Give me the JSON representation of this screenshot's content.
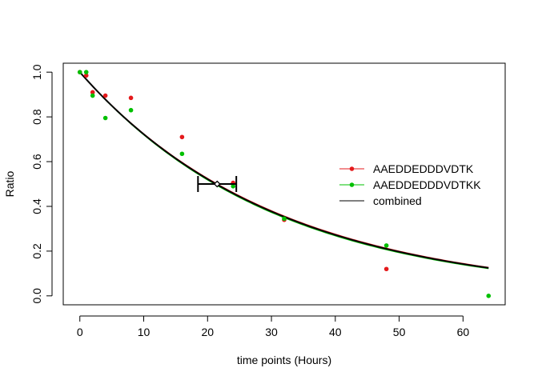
{
  "chart_data": {
    "type": "scatter",
    "title": "",
    "xlabel": "time points (Hours)",
    "ylabel": "Ratio",
    "xlim": [
      -2.6,
      66.6
    ],
    "ylim": [
      -0.04,
      1.04
    ],
    "xticks": [
      0,
      10,
      20,
      30,
      40,
      50,
      60
    ],
    "yticks": [
      0.0,
      0.2,
      0.4,
      0.6,
      0.8,
      1.0
    ],
    "xtick_labels": [
      "0",
      "10",
      "20",
      "30",
      "40",
      "50",
      "60"
    ],
    "ytick_labels": [
      "0.0",
      "0.2",
      "0.4",
      "0.6",
      "0.8",
      "1.0"
    ],
    "grid": false,
    "legend_position": "right",
    "series": [
      {
        "name": "AAEDDEDDDVDTK",
        "color": "#e41a1c",
        "points": [
          {
            "x": 0,
            "y": 1.0
          },
          {
            "x": 1,
            "y": 0.985
          },
          {
            "x": 2,
            "y": 0.91
          },
          {
            "x": 4,
            "y": 0.895
          },
          {
            "x": 8,
            "y": 0.885
          },
          {
            "x": 16,
            "y": 0.71
          },
          {
            "x": 24,
            "y": 0.505
          },
          {
            "x": 32,
            "y": 0.34
          },
          {
            "x": 48,
            "y": 0.12
          }
        ],
        "fit": {
          "model": "exponential_decay",
          "start": 0,
          "end": 64,
          "rate": 0.0322
        }
      },
      {
        "name": "AAEDDEDDDVDTKK",
        "color": "#00c000",
        "points": [
          {
            "x": 0,
            "y": 1.0
          },
          {
            "x": 1,
            "y": 1.0
          },
          {
            "x": 2,
            "y": 0.895
          },
          {
            "x": 4,
            "y": 0.795
          },
          {
            "x": 8,
            "y": 0.83
          },
          {
            "x": 16,
            "y": 0.635
          },
          {
            "x": 24,
            "y": 0.49
          },
          {
            "x": 32,
            "y": 0.345
          },
          {
            "x": 48,
            "y": 0.225
          },
          {
            "x": 64,
            "y": 0.0
          }
        ],
        "fit": {
          "model": "exponential_decay",
          "start": 0,
          "end": 64,
          "rate": 0.0329
        }
      },
      {
        "name": "combined",
        "color": "#000000",
        "fit": {
          "model": "exponential_decay",
          "start": 0,
          "end": 64,
          "rate": 0.0325
        }
      }
    ],
    "half_life": {
      "x": 21.5,
      "y": 0.5,
      "lower": 18.5,
      "upper": 24.5,
      "color": "#000000"
    }
  }
}
